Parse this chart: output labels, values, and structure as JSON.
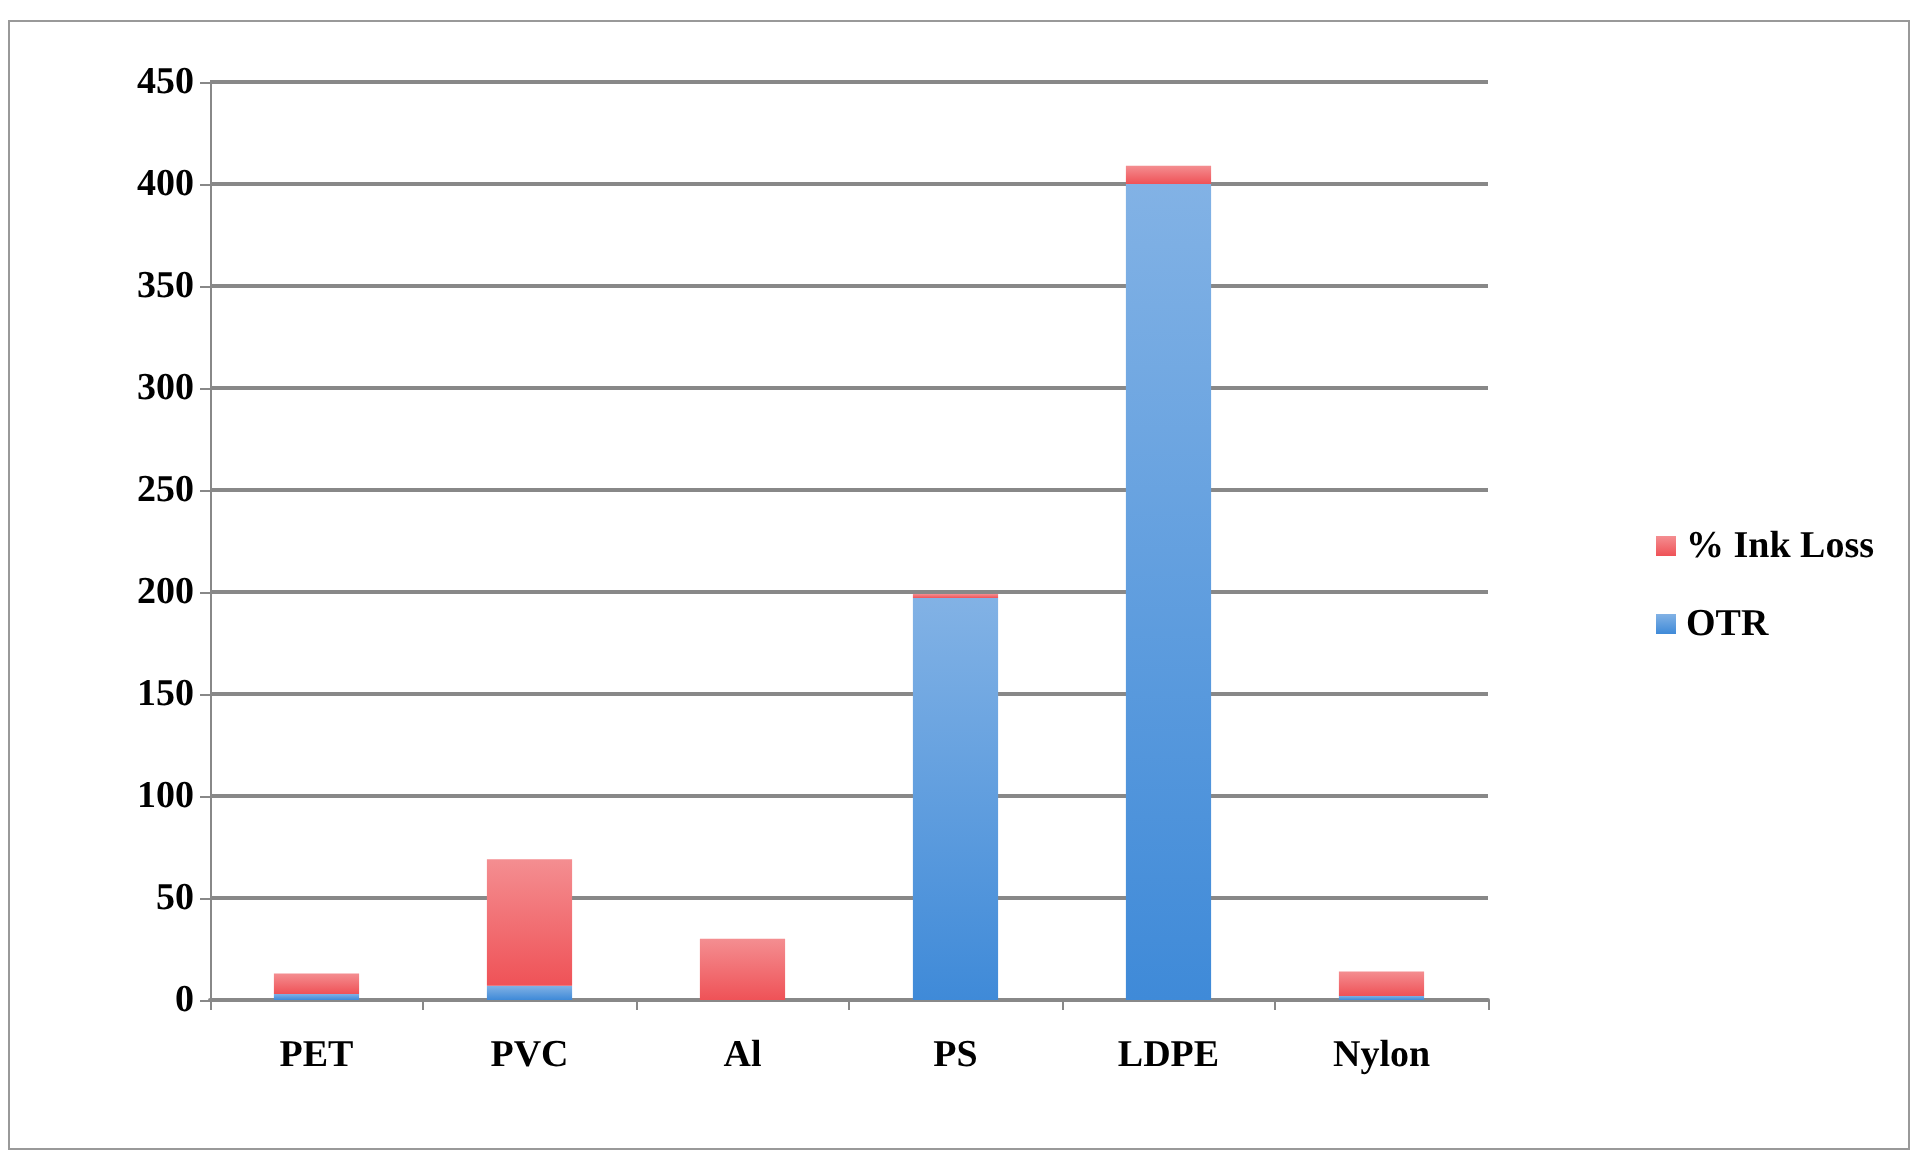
{
  "chart_data": {
    "type": "bar",
    "stacked": true,
    "categories": [
      "PET",
      "PVC",
      "Al",
      "PS",
      "LDPE",
      "Nylon"
    ],
    "series": [
      {
        "name": "OTR",
        "color": "#3f8ad8",
        "values": [
          3,
          7,
          0,
          197,
          400,
          2
        ]
      },
      {
        "name": "% Ink Loss",
        "color": "#ef5257",
        "values": [
          10,
          62,
          30,
          2,
          9,
          12
        ]
      }
    ],
    "ylim": [
      0,
      450
    ],
    "yticks": [
      0,
      50,
      100,
      150,
      200,
      250,
      300,
      350,
      400,
      450
    ],
    "grid": "y",
    "legend": "right"
  }
}
